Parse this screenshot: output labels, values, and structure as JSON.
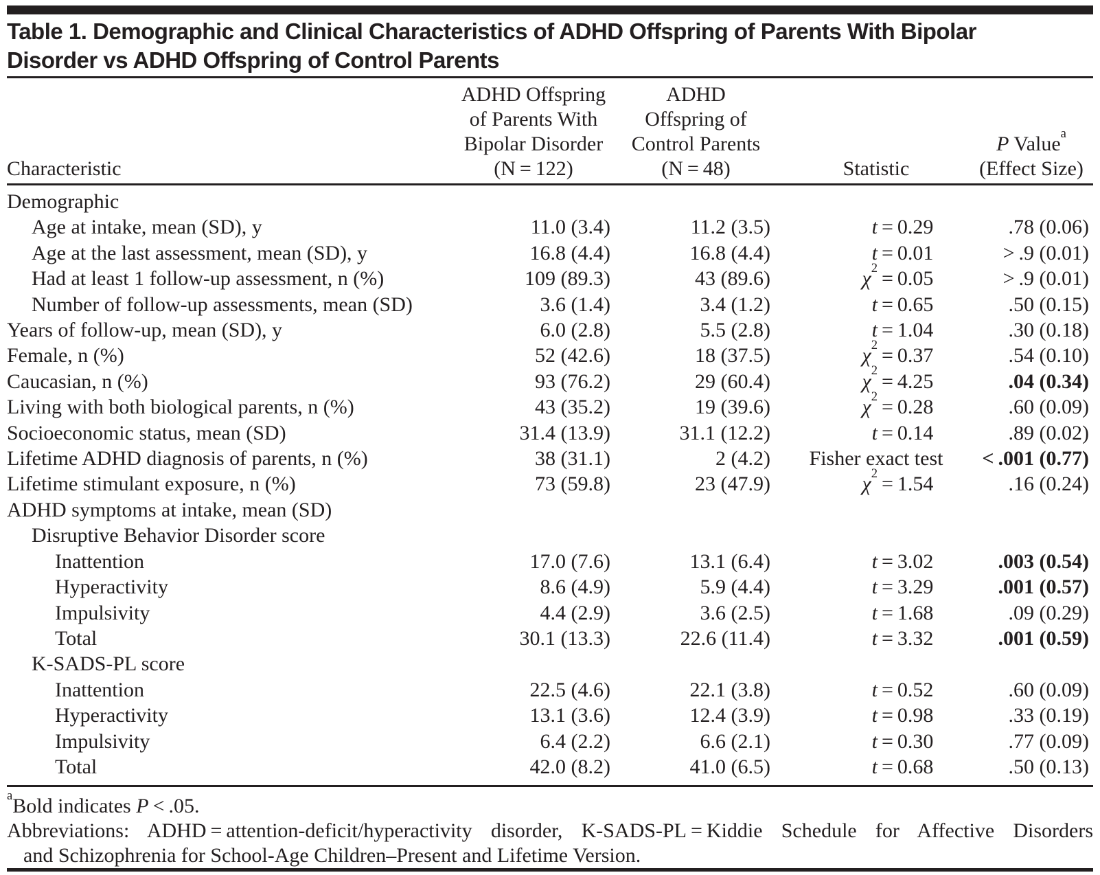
{
  "colors": {
    "background": "#ffffff",
    "text": "#231f20",
    "rule": "#231f20"
  },
  "table": {
    "title_lines": [
      "Table 1. Demographic and Clinical Characteristics of ADHD Offspring of Parents With Bipolar",
      "Disorder vs ADHD Offspring of Control Parents"
    ],
    "columns": {
      "characteristic": "Characteristic",
      "bipolar_lines": [
        "ADHD Offspring",
        "of Parents With",
        "Bipolar Disorder",
        "(N = 122)"
      ],
      "control_lines": [
        "ADHD",
        "Offspring of",
        "Control Parents",
        "(N = 48)"
      ],
      "statistic": "Statistic",
      "p_value": {
        "italic": "P",
        "rest": " Value",
        "sup": "a",
        "line2": "(Effect Size)"
      }
    },
    "rows": [
      {
        "label": "Demographic",
        "indent": 0,
        "bipolar": "",
        "control": "",
        "stat_symbol": "",
        "stat_value": "",
        "p": "",
        "p_bold": false
      },
      {
        "label": "Age at intake, mean (SD), y",
        "indent": 1,
        "bipolar": "11.0 (3.4)",
        "control": "11.2 (3.5)",
        "stat_symbol": "t",
        "stat_value": "0.29",
        "p": ".78 (0.06)",
        "p_bold": false
      },
      {
        "label": "Age at the last assessment, mean (SD), y",
        "indent": 1,
        "bipolar": "16.8 (4.4)",
        "control": "16.8 (4.4)",
        "stat_symbol": "t",
        "stat_value": "0.01",
        "p": "> .9 (0.01)",
        "p_bold": false
      },
      {
        "label": "Had at least 1 follow-up assessment, n (%)",
        "indent": 1,
        "bipolar": "109 (89.3)",
        "control": "43 (89.6)",
        "stat_symbol": "chi2",
        "stat_value": "0.05",
        "p": "> .9 (0.01)",
        "p_bold": false
      },
      {
        "label": "Number of follow-up assessments, mean (SD)",
        "indent": 1,
        "bipolar": "3.6 (1.4)",
        "control": "3.4 (1.2)",
        "stat_symbol": "t",
        "stat_value": "0.65",
        "p": ".50 (0.15)",
        "p_bold": false
      },
      {
        "label": "Years of follow-up, mean (SD), y",
        "indent": 0,
        "bipolar": "6.0 (2.8)",
        "control": "5.5 (2.8)",
        "stat_symbol": "t",
        "stat_value": "1.04",
        "p": ".30 (0.18)",
        "p_bold": false
      },
      {
        "label": "Female, n (%)",
        "indent": 0,
        "bipolar": "52 (42.6)",
        "control": "18 (37.5)",
        "stat_symbol": "chi2",
        "stat_value": "0.37",
        "p": ".54 (0.10)",
        "p_bold": false
      },
      {
        "label": "Caucasian, n (%)",
        "indent": 0,
        "bipolar": "93 (76.2)",
        "control": "29 (60.4)",
        "stat_symbol": "chi2",
        "stat_value": "4.25",
        "p": ".04 (0.34)",
        "p_bold": true
      },
      {
        "label": "Living with both biological parents, n (%)",
        "indent": 0,
        "bipolar": "43 (35.2)",
        "control": "19 (39.6)",
        "stat_symbol": "chi2",
        "stat_value": "0.28",
        "p": ".60 (0.09)",
        "p_bold": false
      },
      {
        "label": "Socioeconomic status, mean (SD)",
        "indent": 0,
        "bipolar": "31.4 (13.9)",
        "control": "31.1 (12.2)",
        "stat_symbol": "t",
        "stat_value": "0.14",
        "p": ".89 (0.02)",
        "p_bold": false
      },
      {
        "label": "Lifetime ADHD diagnosis of parents, n (%)",
        "indent": 0,
        "bipolar": "38 (31.1)",
        "control": "2 (4.2)",
        "stat_symbol": "text",
        "stat_value": "Fisher exact test",
        "p": "< .001 (0.77)",
        "p_bold": true
      },
      {
        "label": "Lifetime stimulant exposure, n (%)",
        "indent": 0,
        "bipolar": "73 (59.8)",
        "control": "23 (47.9)",
        "stat_symbol": "chi2",
        "stat_value": "1.54",
        "p": ".16 (0.24)",
        "p_bold": false
      },
      {
        "label": "ADHD symptoms at intake, mean (SD)",
        "indent": 0,
        "bipolar": "",
        "control": "",
        "stat_symbol": "",
        "stat_value": "",
        "p": "",
        "p_bold": false
      },
      {
        "label": "Disruptive Behavior Disorder score",
        "indent": 1,
        "bipolar": "",
        "control": "",
        "stat_symbol": "",
        "stat_value": "",
        "p": "",
        "p_bold": false
      },
      {
        "label": "Inattention",
        "indent": 2,
        "bipolar": "17.0 (7.6)",
        "control": "13.1 (6.4)",
        "stat_symbol": "t",
        "stat_value": "3.02",
        "p": ".003 (0.54)",
        "p_bold": true
      },
      {
        "label": "Hyperactivity",
        "indent": 2,
        "bipolar": "8.6 (4.9)",
        "control": "5.9 (4.4)",
        "stat_symbol": "t",
        "stat_value": "3.29",
        "p": ".001 (0.57)",
        "p_bold": true
      },
      {
        "label": "Impulsivity",
        "indent": 2,
        "bipolar": "4.4 (2.9)",
        "control": "3.6 (2.5)",
        "stat_symbol": "t",
        "stat_value": "1.68",
        "p": ".09 (0.29)",
        "p_bold": false
      },
      {
        "label": "Total",
        "indent": 2,
        "bipolar": "30.1 (13.3)",
        "control": "22.6 (11.4)",
        "stat_symbol": "t",
        "stat_value": "3.32",
        "p": ".001 (0.59)",
        "p_bold": true
      },
      {
        "label": "K-SADS-PL score",
        "indent": 1,
        "bipolar": "",
        "control": "",
        "stat_symbol": "",
        "stat_value": "",
        "p": "",
        "p_bold": false
      },
      {
        "label": "Inattention",
        "indent": 2,
        "bipolar": "22.5 (4.6)",
        "control": "22.1 (3.8)",
        "stat_symbol": "t",
        "stat_value": "0.52",
        "p": ".60 (0.09)",
        "p_bold": false
      },
      {
        "label": "Hyperactivity",
        "indent": 2,
        "bipolar": "13.1 (3.6)",
        "control": "12.4 (3.9)",
        "stat_symbol": "t",
        "stat_value": "0.98",
        "p": ".33 (0.19)",
        "p_bold": false
      },
      {
        "label": "Impulsivity",
        "indent": 2,
        "bipolar": "6.4 (2.2)",
        "control": "6.6 (2.1)",
        "stat_symbol": "t",
        "stat_value": "0.30",
        "p": ".77 (0.09)",
        "p_bold": false
      },
      {
        "label": "Total",
        "indent": 2,
        "bipolar": "42.0 (8.2)",
        "control": "41.0 (6.5)",
        "stat_symbol": "t",
        "stat_value": "0.68",
        "p": ".50 (0.13)",
        "p_bold": false
      }
    ],
    "footnotes": {
      "a_sup": "a",
      "a_pre": "Bold indicates ",
      "a_italic": "P",
      "a_post": " < .05.",
      "abbrev_line1": "Abbreviations: ADHD = attention-deficit/hyperactivity disorder, K-SADS-PL = Kiddie Schedule for Affective Disorders",
      "abbrev_line2": "and Schizophrenia for School-Age Children–Present and Lifetime Version."
    }
  }
}
